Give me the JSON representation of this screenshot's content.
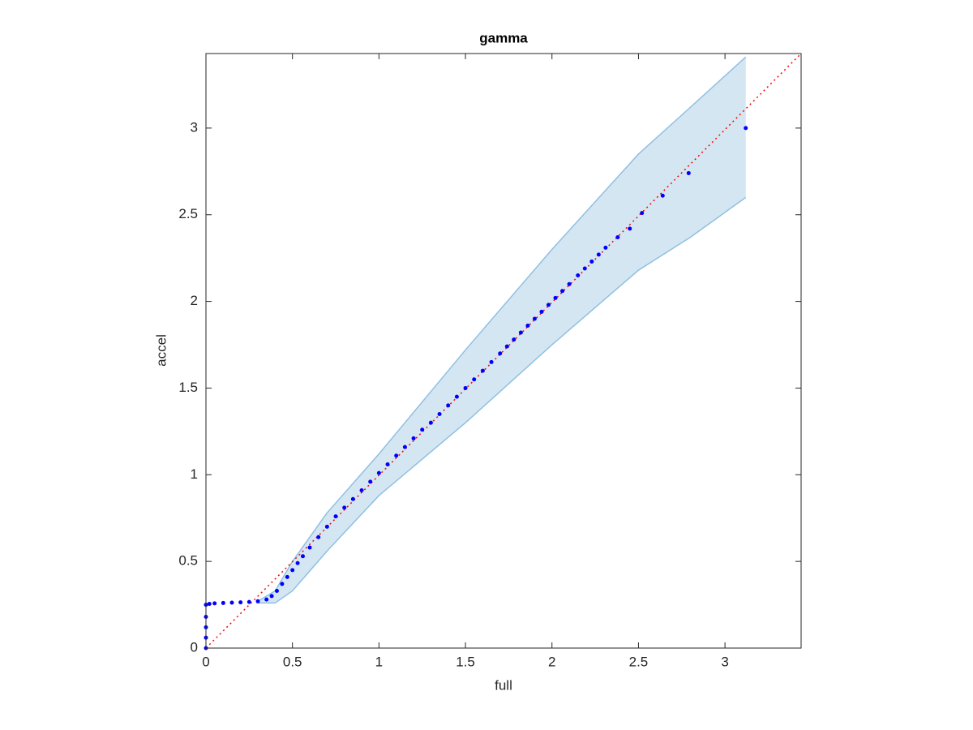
{
  "chart_data": {
    "type": "scatter",
    "title": "gamma",
    "x_label": "full",
    "y_label": "accel",
    "xlim": [
      0,
      3.44
    ],
    "ylim": [
      0,
      3.43
    ],
    "xticks": [
      0,
      0.5,
      1,
      1.5,
      2,
      2.5,
      3
    ],
    "yticks": [
      0,
      0.5,
      1,
      1.5,
      2,
      2.5,
      3
    ],
    "series": [
      {
        "color": "#0000ff",
        "x": [
          0,
          0,
          0,
          0,
          0,
          0.02,
          0.05,
          0.1,
          0.15,
          0.2,
          0.25,
          0.3,
          0.35,
          0.38,
          0.41,
          0.44,
          0.47,
          0.5,
          0.53,
          0.56,
          0.6,
          0.65,
          0.7,
          0.75,
          0.8,
          0.85,
          0.9,
          0.95,
          1.0,
          1.05,
          1.1,
          1.15,
          1.2,
          1.25,
          1.3,
          1.35,
          1.4,
          1.45,
          1.5,
          1.55,
          1.6,
          1.65,
          1.7,
          1.74,
          1.78,
          1.82,
          1.86,
          1.9,
          1.94,
          1.98,
          2.02,
          2.06,
          2.1,
          2.15,
          2.19,
          2.23,
          2.27,
          2.31,
          2.38,
          2.45,
          2.52,
          2.64,
          2.79,
          3.12
        ],
        "values": [
          0,
          0.06,
          0.12,
          0.18,
          0.25,
          0.255,
          0.258,
          0.26,
          0.262,
          0.264,
          0.266,
          0.27,
          0.28,
          0.3,
          0.33,
          0.37,
          0.41,
          0.45,
          0.49,
          0.53,
          0.58,
          0.64,
          0.7,
          0.76,
          0.81,
          0.86,
          0.91,
          0.96,
          1.01,
          1.06,
          1.11,
          1.16,
          1.21,
          1.26,
          1.3,
          1.35,
          1.4,
          1.45,
          1.5,
          1.55,
          1.6,
          1.65,
          1.7,
          1.74,
          1.78,
          1.82,
          1.86,
          1.9,
          1.94,
          1.98,
          2.02,
          2.06,
          2.1,
          2.15,
          2.19,
          2.23,
          2.27,
          2.31,
          2.37,
          2.42,
          2.51,
          2.61,
          2.74,
          3.0
        ]
      }
    ],
    "band": {
      "fill": "#d5e6f3",
      "edge_color": "#8ec0e2",
      "x": [
        0.3,
        0.4,
        0.5,
        0.7,
        1.0,
        1.5,
        2.0,
        2.5,
        2.8,
        3.12
      ],
      "upper": [
        0.27,
        0.33,
        0.5,
        0.78,
        1.12,
        1.72,
        2.3,
        2.85,
        3.12,
        3.41
      ],
      "lower": [
        0.26,
        0.26,
        0.33,
        0.56,
        0.88,
        1.3,
        1.75,
        2.18,
        2.37,
        2.6
      ]
    },
    "reference_line": {
      "color": "#ff0000",
      "x": [
        0,
        3.44
      ],
      "values": [
        0,
        3.43
      ]
    }
  }
}
